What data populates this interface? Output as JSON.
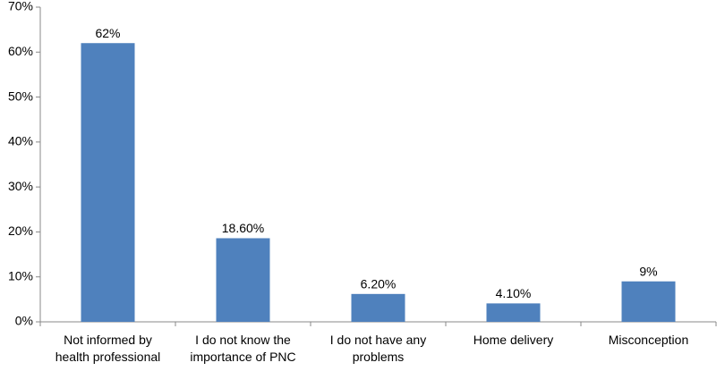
{
  "chart_data": {
    "type": "bar",
    "categories": [
      "Not informed by health professional",
      "I do not know the importance of PNC",
      "I do not have any problems",
      "Home delivery",
      "Misconception"
    ],
    "values": [
      62,
      18.6,
      6.2,
      4.1,
      9
    ],
    "value_labels": [
      "62%",
      "18.60%",
      "6.20%",
      "4.10%",
      "9%"
    ],
    "color": "#4f81bd",
    "ylim": [
      0,
      70
    ],
    "yticks": [
      {
        "value": 0,
        "label": "0%"
      },
      {
        "value": 10,
        "label": "10%"
      },
      {
        "value": 20,
        "label": "20%"
      },
      {
        "value": 30,
        "label": "30%"
      },
      {
        "value": 40,
        "label": "40%"
      },
      {
        "value": 50,
        "label": "50%"
      },
      {
        "value": 60,
        "label": "60%"
      },
      {
        "value": 70,
        "label": "70%"
      }
    ],
    "grid": false
  }
}
